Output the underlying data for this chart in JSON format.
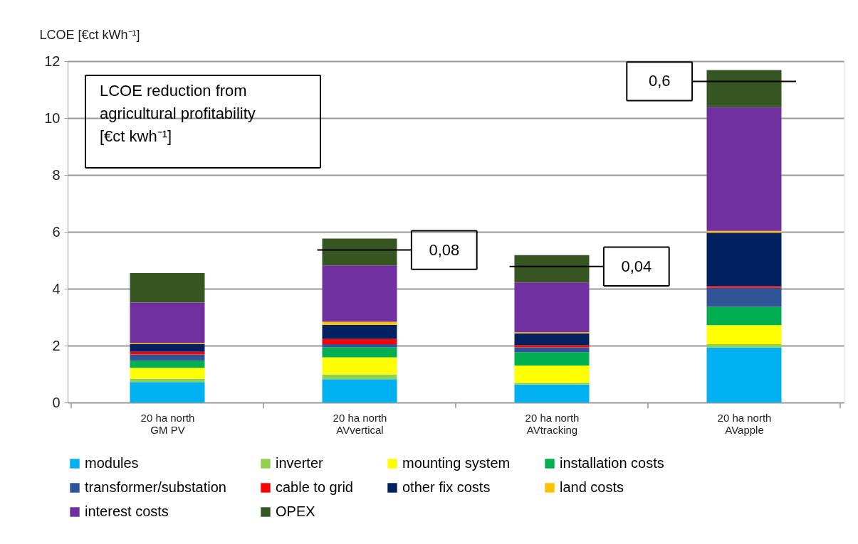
{
  "chart_data": {
    "type": "bar",
    "stacked": true,
    "ylabel": "LCOE [€ct kWh⁻¹]",
    "categories": [
      "20 ha north\nGM PV",
      "20 ha north\nAVvertical",
      "20 ha north\nAVtracking",
      "20 ha north\nAVapple"
    ],
    "series": [
      {
        "name": "modules",
        "color": "#00b0f0",
        "values": [
          0.72,
          0.82,
          0.63,
          1.94
        ]
      },
      {
        "name": "inverter",
        "color": "#92d050",
        "values": [
          0.12,
          0.17,
          0.06,
          0.11
        ]
      },
      {
        "name": "mounting system",
        "color": "#ffff00",
        "values": [
          0.38,
          0.6,
          0.61,
          0.67
        ]
      },
      {
        "name": "installation costs",
        "color": "#00b050",
        "values": [
          0.25,
          0.35,
          0.46,
          0.64
        ]
      },
      {
        "name": "transformer/substation",
        "color": "#2f5597",
        "values": [
          0.22,
          0.11,
          0.18,
          0.67
        ]
      },
      {
        "name": "cable to grid",
        "color": "#ff0000",
        "values": [
          0.09,
          0.18,
          0.07,
          0.06
        ]
      },
      {
        "name": "other fix costs",
        "color": "#002060",
        "values": [
          0.27,
          0.5,
          0.42,
          1.88
        ]
      },
      {
        "name": "land costs",
        "color": "#ffc000",
        "values": [
          0.04,
          0.11,
          0.04,
          0.06
        ]
      },
      {
        "name": "interest costs",
        "color": "#7030a0",
        "values": [
          1.42,
          1.98,
          1.75,
          4.35
        ]
      },
      {
        "name": "OPEX",
        "color": "#375623",
        "values": [
          1.04,
          0.94,
          0.96,
          1.31
        ]
      }
    ],
    "ylim": [
      0,
      12
    ],
    "yticks": [
      0,
      2,
      4,
      6,
      8,
      10,
      12
    ],
    "grid": "y",
    "legend": "bottom",
    "annotations": [
      "LCOE reduction from\nagricultural profitability\n[€ct kwh⁻¹]",
      "0,08",
      "0,04",
      "0,6"
    ]
  }
}
